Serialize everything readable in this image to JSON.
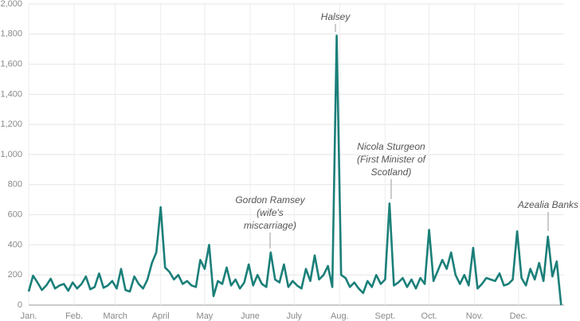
{
  "chart_data": {
    "type": "line",
    "x": [
      0,
      3,
      6,
      9,
      12,
      15,
      18,
      21,
      24,
      27,
      30,
      33,
      36,
      39,
      42,
      45,
      48,
      51,
      54,
      57,
      60,
      63,
      66,
      69,
      72,
      75,
      78,
      81,
      84,
      87,
      90,
      93,
      96,
      99,
      102,
      105,
      108,
      111,
      114,
      117,
      120,
      123,
      126,
      129,
      132,
      135,
      138,
      141,
      144,
      147,
      150,
      153,
      156,
      159,
      162,
      165,
      168,
      171,
      174,
      177,
      180,
      183,
      186,
      189,
      192,
      195,
      198,
      201,
      204,
      207,
      210,
      213,
      216,
      219,
      222,
      225,
      228,
      231,
      234,
      237,
      240,
      243,
      246,
      249,
      252,
      255,
      258,
      261,
      264,
      267,
      270,
      273,
      276,
      279,
      282,
      285,
      288,
      291,
      294,
      297,
      300,
      303,
      306,
      309,
      312,
      315,
      318,
      321,
      324,
      327,
      330,
      333,
      336,
      339,
      342,
      345,
      348,
      351,
      354,
      357,
      360,
      363
    ],
    "series": [
      {
        "color": "#1b7f79",
        "values": [
          90,
          195,
          150,
          100,
          130,
          175,
          110,
          130,
          140,
          95,
          150,
          110,
          140,
          190,
          105,
          120,
          210,
          115,
          130,
          160,
          110,
          240,
          100,
          90,
          190,
          140,
          110,
          170,
          280,
          350,
          650,
          250,
          220,
          170,
          200,
          140,
          160,
          130,
          120,
          300,
          240,
          400,
          60,
          160,
          140,
          250,
          130,
          170,
          110,
          150,
          270,
          130,
          200,
          140,
          120,
          350,
          170,
          150,
          270,
          120,
          160,
          130,
          110,
          240,
          160,
          330,
          170,
          200,
          260,
          120,
          1790,
          200,
          180,
          120,
          150,
          110,
          80,
          160,
          120,
          200,
          140,
          170,
          675,
          130,
          150,
          180,
          120,
          170,
          110,
          180,
          140,
          500,
          160,
          230,
          300,
          240,
          350,
          200,
          140,
          200,
          130,
          380,
          110,
          140,
          180,
          170,
          160,
          210,
          130,
          140,
          170,
          490,
          180,
          130,
          240,
          170,
          280,
          160,
          455,
          190,
          290,
          0
        ]
      }
    ],
    "xlim": [
      0,
      365
    ],
    "xticks": [
      {
        "value": 0,
        "label": "Jan."
      },
      {
        "value": 31,
        "label": "Feb."
      },
      {
        "value": 59,
        "label": "March"
      },
      {
        "value": 90,
        "label": "April"
      },
      {
        "value": 120,
        "label": "May"
      },
      {
        "value": 151,
        "label": "June"
      },
      {
        "value": 181,
        "label": "July"
      },
      {
        "value": 212,
        "label": "Aug."
      },
      {
        "value": 243,
        "label": "Sept."
      },
      {
        "value": 273,
        "label": "Oct."
      },
      {
        "value": 304,
        "label": "Nov."
      },
      {
        "value": 334,
        "label": "Dec."
      }
    ],
    "ylim": [
      0,
      2000
    ],
    "yticks": [
      0,
      200,
      400,
      600,
      800,
      {
        "value": 1000,
        "label": "1,000"
      },
      {
        "value": 1200,
        "label": "1,200"
      },
      {
        "value": 1400,
        "label": "1,400"
      },
      {
        "value": 1600,
        "label": "1,600"
      },
      {
        "value": 1800,
        "label": "1,800"
      },
      {
        "value": 2000,
        "label": "2,000"
      }
    ],
    "grid": true,
    "annotations": [
      [
        "Halsey"
      ],
      [
        "Gordon Ramsey",
        "(wife's",
        "miscarriage)"
      ],
      [
        "Nicola Sturgeon",
        "(First Minister of",
        "Scotland)"
      ],
      [
        "Azealia Banks"
      ]
    ]
  }
}
